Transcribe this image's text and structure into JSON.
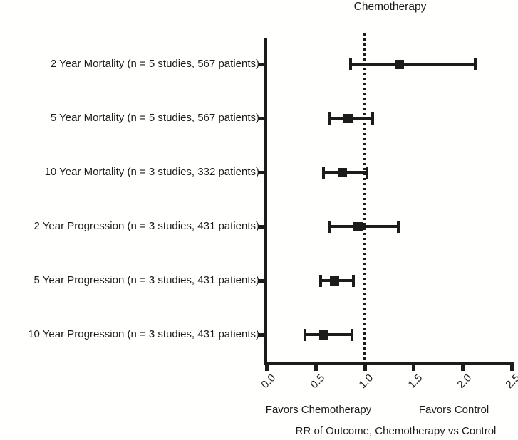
{
  "figure": {
    "background": "#fffffe",
    "ink": "#1c1c1c"
  },
  "chart_data": {
    "type": "scatter",
    "subtype": "forest-plot",
    "title": "Chemotherapy",
    "xlabel": "RR of Outcome, Chemotherapy vs Control",
    "x_axis": {
      "min": 0.0,
      "max": 2.5,
      "ticks": [
        "0.0",
        "0.5",
        "1.0",
        "1.5",
        "2.0",
        "2.5"
      ],
      "tick_values": [
        0.0,
        0.5,
        1.0,
        1.5,
        2.0,
        2.5
      ]
    },
    "reference_line_x": 1.0,
    "reference_line_style": "dotted",
    "annotations": {
      "favors_left": "Favors Chemotherapy",
      "favors_right": "Favors Control"
    },
    "rows": [
      {
        "label": "2 Year Mortality (n = 5 studies, 567 patients)",
        "rr": 1.35,
        "ci_low": 0.85,
        "ci_high": 2.13
      },
      {
        "label": "5 Year Mortality (n = 5 studies, 567 patients)",
        "rr": 0.83,
        "ci_low": 0.64,
        "ci_high": 1.08
      },
      {
        "label": "10 Year Mortality (n = 3 studies, 332 patients)",
        "rr": 0.77,
        "ci_low": 0.58,
        "ci_high": 1.02
      },
      {
        "label": "2 Year Progression (n = 3 studies, 431 patients)",
        "rr": 0.93,
        "ci_low": 0.64,
        "ci_high": 1.34
      },
      {
        "label": "5 Year Progression (n = 3 studies, 431 patients)",
        "rr": 0.69,
        "ci_low": 0.55,
        "ci_high": 0.88
      },
      {
        "label": "10 Year Progression (n = 3 studies, 431 patients)",
        "rr": 0.58,
        "ci_low": 0.39,
        "ci_high": 0.87
      }
    ],
    "marker_shape": "square",
    "grid": false,
    "legend": null
  }
}
